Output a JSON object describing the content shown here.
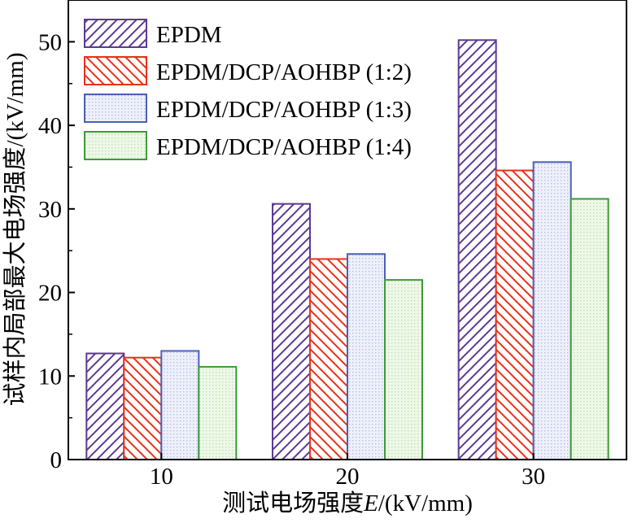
{
  "chart_data": {
    "type": "bar",
    "title": "",
    "xlabel": "测试电场强度E/(kV/mm)",
    "xlabel_parts": {
      "prefix": "测试电场强度",
      "var": "E",
      "suffix": "/(kV/mm)"
    },
    "ylabel": "试样内局部最大电场强度/(kV/mm)",
    "categories": [
      "10",
      "20",
      "30"
    ],
    "ylim": [
      0,
      55
    ],
    "yticks": [
      0,
      10,
      20,
      30,
      40,
      50
    ],
    "grid": false,
    "legend_position": "top-left",
    "series": [
      {
        "name": "EPDM",
        "values": [
          12.7,
          30.6,
          50.2
        ],
        "color": "#5b3a92",
        "pattern": "diag-up"
      },
      {
        "name": "EPDM/DCP/AOHBP (1:2)",
        "values": [
          12.2,
          24.0,
          34.6
        ],
        "color": "#e8311a",
        "pattern": "diag-down"
      },
      {
        "name": "EPDM/DCP/AOHBP (1:3)",
        "values": [
          13.0,
          24.6,
          35.6
        ],
        "color": "#4a5fb8",
        "pattern": "dots-blue"
      },
      {
        "name": "EPDM/DCP/AOHBP (1:4)",
        "values": [
          11.1,
          21.5,
          31.2
        ],
        "color": "#3f9a3a",
        "pattern": "dots-green"
      }
    ]
  }
}
